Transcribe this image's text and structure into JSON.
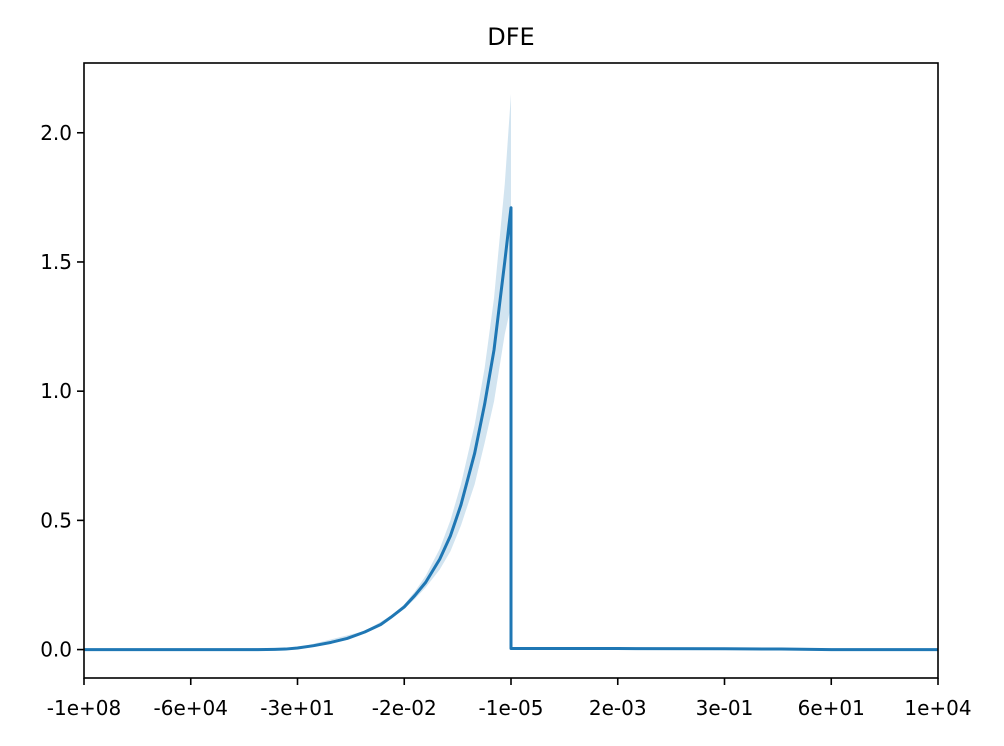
{
  "chart_data": {
    "type": "line",
    "title": "DFE",
    "xlabel": "",
    "ylabel": "",
    "x_scale": "symlog",
    "x_ticks": [
      -100000000.0,
      -60000.0,
      -30,
      -0.02,
      -1e-05,
      0.002,
      0.3,
      60,
      10000.0
    ],
    "x_tick_labels": [
      "-1e+08",
      "-6e+04",
      "-3e+01",
      "-2e-02",
      "-1e-05",
      "2e-03",
      "3e-01",
      "6e+01",
      "1e+04"
    ],
    "xlim": [
      -100000000.0,
      10000.0
    ],
    "y_ticks": [
      0.0,
      0.5,
      1.0,
      1.5,
      2.0
    ],
    "y_tick_labels": [
      "0.0",
      "0.5",
      "1.0",
      "1.5",
      "2.0"
    ],
    "ylim": [
      -0.11,
      2.27
    ],
    "grid": false,
    "colors": {
      "line": "#1f77b4",
      "band": "#1f77b4"
    },
    "series": [
      {
        "values": [
          {
            "x": -100000000.0,
            "y": 0.0
          },
          {
            "x": -20000000.0,
            "y": 0.0
          },
          {
            "x": -5000000.0,
            "y": 0.0
          },
          {
            "x": -1000000.0,
            "y": 0.0
          },
          {
            "x": -200000.0,
            "y": 0.0
          },
          {
            "x": -60000.0,
            "y": 0.0
          },
          {
            "x": -10000.0,
            "y": 0.0
          },
          {
            "x": -2000,
            "y": 0.0
          },
          {
            "x": -500,
            "y": 0.0
          },
          {
            "x": -150,
            "y": 0.001
          },
          {
            "x": -70,
            "y": 0.002
          },
          {
            "x": -30,
            "y": 0.006
          },
          {
            "x": -10,
            "y": 0.015
          },
          {
            "x": -3,
            "y": 0.028
          },
          {
            "x": -1,
            "y": 0.043
          },
          {
            "x": -0.3,
            "y": 0.068
          },
          {
            "x": -0.1,
            "y": 0.097
          },
          {
            "x": -0.05,
            "y": 0.125
          },
          {
            "x": -0.02,
            "y": 0.165
          },
          {
            "x": -0.01,
            "y": 0.21
          },
          {
            "x": -0.005,
            "y": 0.26
          },
          {
            "x": -0.002,
            "y": 0.35
          },
          {
            "x": -0.001,
            "y": 0.44
          },
          {
            "x": -0.0005,
            "y": 0.56
          },
          {
            "x": -0.0002,
            "y": 0.76
          },
          {
            "x": -0.0001,
            "y": 0.95
          },
          {
            "x": -5e-05,
            "y": 1.16
          },
          {
            "x": -2e-05,
            "y": 1.5
          },
          {
            "x": -1e-05,
            "y": 1.71
          },
          {
            "x": -1e-05,
            "y": 0.004
          },
          {
            "x": 0.002,
            "y": 0.004
          },
          {
            "x": 0.3,
            "y": 0.003
          },
          {
            "x": 5,
            "y": 0.002
          },
          {
            "x": 60,
            "y": 0.0
          },
          {
            "x": 10000,
            "y": 0.0
          }
        ],
        "band": [
          {
            "x": -100000000.0,
            "lo": 0.0,
            "hi": 0.0
          },
          {
            "x": -30,
            "lo": 0.005,
            "hi": 0.007
          },
          {
            "x": -0.3,
            "lo": 0.064,
            "hi": 0.072
          },
          {
            "x": -0.05,
            "lo": 0.12,
            "hi": 0.13
          },
          {
            "x": -0.02,
            "lo": 0.158,
            "hi": 0.175
          },
          {
            "x": -0.01,
            "lo": 0.196,
            "hi": 0.225
          },
          {
            "x": -0.005,
            "lo": 0.24,
            "hi": 0.285
          },
          {
            "x": -0.002,
            "lo": 0.31,
            "hi": 0.39
          },
          {
            "x": -0.001,
            "lo": 0.38,
            "hi": 0.5
          },
          {
            "x": -0.0005,
            "lo": 0.48,
            "hi": 0.64
          },
          {
            "x": -0.0002,
            "lo": 0.64,
            "hi": 0.87
          },
          {
            "x": -0.0001,
            "lo": 0.8,
            "hi": 1.09
          },
          {
            "x": -5e-05,
            "lo": 0.96,
            "hi": 1.36
          },
          {
            "x": -2e-05,
            "lo": 1.22,
            "hi": 1.8
          },
          {
            "x": -1e-05,
            "lo": 1.33,
            "hi": 2.15
          }
        ]
      }
    ]
  }
}
